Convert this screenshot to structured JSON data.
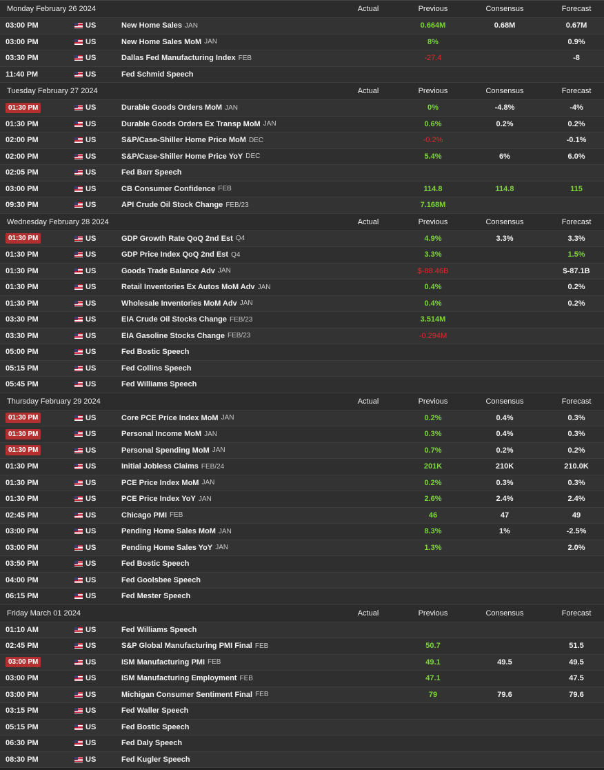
{
  "columns": {
    "actual": "Actual",
    "previous": "Previous",
    "consensus": "Consensus",
    "forecast": "Forecast"
  },
  "colors": {
    "positive": "#7dd63a",
    "negative": "#e02a2a",
    "highlight_time": "#b23030"
  },
  "days": [
    {
      "date": "Monday February 26 2024",
      "events": [
        {
          "time": "03:00 PM",
          "hl": false,
          "country": "US",
          "name": "New Home Sales",
          "ref": "JAN",
          "actual": "",
          "previous": "0.664M",
          "prev_sign": "pos",
          "consensus": "0.68M",
          "forecast": "0.67M"
        },
        {
          "time": "03:00 PM",
          "hl": false,
          "country": "US",
          "name": "New Home Sales MoM",
          "ref": "JAN",
          "actual": "",
          "previous": "8%",
          "prev_sign": "pos",
          "consensus": "",
          "forecast": "0.9%"
        },
        {
          "time": "03:30 PM",
          "hl": false,
          "country": "US",
          "name": "Dallas Fed Manufacturing Index",
          "ref": "FEB",
          "actual": "",
          "previous": "-27.4",
          "prev_sign": "neg",
          "consensus": "",
          "forecast": "-8"
        },
        {
          "time": "11:40 PM",
          "hl": false,
          "country": "US",
          "name": "Fed Schmid Speech",
          "ref": "",
          "actual": "",
          "previous": "",
          "prev_sign": "pos",
          "consensus": "",
          "forecast": ""
        }
      ]
    },
    {
      "date": "Tuesday February 27 2024",
      "events": [
        {
          "time": "01:30 PM",
          "hl": true,
          "country": "US",
          "name": "Durable Goods Orders MoM",
          "ref": "JAN",
          "actual": "",
          "previous": "0%",
          "prev_sign": "pos",
          "consensus": "-4.8%",
          "forecast": "-4%"
        },
        {
          "time": "01:30 PM",
          "hl": false,
          "country": "US",
          "name": "Durable Goods Orders Ex Transp MoM",
          "ref": "JAN",
          "actual": "",
          "previous": "0.6%",
          "prev_sign": "pos",
          "consensus": "0.2%",
          "forecast": "0.2%"
        },
        {
          "time": "02:00 PM",
          "hl": false,
          "country": "US",
          "name": "S&P/Case-Shiller Home Price MoM",
          "ref": "DEC",
          "actual": "",
          "previous": "-0.2%",
          "prev_sign": "neg",
          "consensus": "",
          "forecast": "-0.1%"
        },
        {
          "time": "02:00 PM",
          "hl": false,
          "country": "US",
          "name": "S&P/Case-Shiller Home Price YoY",
          "ref": "DEC",
          "actual": "",
          "previous": "5.4%",
          "prev_sign": "pos",
          "consensus": "6%",
          "forecast": "6.0%"
        },
        {
          "time": "02:05 PM",
          "hl": false,
          "country": "US",
          "name": "Fed Barr Speech",
          "ref": "",
          "actual": "",
          "previous": "",
          "prev_sign": "pos",
          "consensus": "",
          "forecast": ""
        },
        {
          "time": "03:00 PM",
          "hl": false,
          "country": "US",
          "name": "CB Consumer Confidence",
          "ref": "FEB",
          "actual": "",
          "previous": "114.8",
          "prev_sign": "pos",
          "consensus": "114.8",
          "cons_green": true,
          "forecast": "115",
          "fc_green": true
        },
        {
          "time": "09:30 PM",
          "hl": false,
          "country": "US",
          "name": "API Crude Oil Stock Change",
          "ref": "FEB/23",
          "actual": "",
          "previous": "7.168M",
          "prev_sign": "pos",
          "consensus": "",
          "forecast": ""
        }
      ]
    },
    {
      "date": "Wednesday February 28 2024",
      "events": [
        {
          "time": "01:30 PM",
          "hl": true,
          "country": "US",
          "name": "GDP Growth Rate QoQ 2nd Est",
          "ref": "Q4",
          "actual": "",
          "previous": "4.9%",
          "prev_sign": "pos",
          "consensus": "3.3%",
          "forecast": "3.3%"
        },
        {
          "time": "01:30 PM",
          "hl": false,
          "country": "US",
          "name": "GDP Price Index QoQ 2nd Est",
          "ref": "Q4",
          "actual": "",
          "previous": "3.3%",
          "prev_sign": "pos",
          "consensus": "",
          "forecast": "1.5%",
          "fc_green": true
        },
        {
          "time": "01:30 PM",
          "hl": false,
          "country": "US",
          "name": "Goods Trade Balance Adv",
          "ref": "JAN",
          "actual": "",
          "previous": "$-88.46B",
          "prev_sign": "neg",
          "consensus": "",
          "forecast": "$-87.1B"
        },
        {
          "time": "01:30 PM",
          "hl": false,
          "country": "US",
          "name": "Retail Inventories Ex Autos MoM Adv",
          "ref": "JAN",
          "actual": "",
          "previous": "0.4%",
          "prev_sign": "pos",
          "consensus": "",
          "forecast": "0.2%"
        },
        {
          "time": "01:30 PM",
          "hl": false,
          "country": "US",
          "name": "Wholesale Inventories MoM Adv",
          "ref": "JAN",
          "actual": "",
          "previous": "0.4%",
          "prev_sign": "pos",
          "consensus": "",
          "forecast": "0.2%"
        },
        {
          "time": "03:30 PM",
          "hl": false,
          "country": "US",
          "name": "EIA Crude Oil Stocks Change",
          "ref": "FEB/23",
          "actual": "",
          "previous": "3.514M",
          "prev_sign": "pos",
          "consensus": "",
          "forecast": ""
        },
        {
          "time": "03:30 PM",
          "hl": false,
          "country": "US",
          "name": "EIA Gasoline Stocks Change",
          "ref": "FEB/23",
          "actual": "",
          "previous": "-0.294M",
          "prev_sign": "neg",
          "consensus": "",
          "forecast": ""
        },
        {
          "time": "05:00 PM",
          "hl": false,
          "country": "US",
          "name": "Fed Bostic Speech",
          "ref": "",
          "actual": "",
          "previous": "",
          "prev_sign": "pos",
          "consensus": "",
          "forecast": ""
        },
        {
          "time": "05:15 PM",
          "hl": false,
          "country": "US",
          "name": "Fed Collins Speech",
          "ref": "",
          "actual": "",
          "previous": "",
          "prev_sign": "pos",
          "consensus": "",
          "forecast": ""
        },
        {
          "time": "05:45 PM",
          "hl": false,
          "country": "US",
          "name": "Fed Williams Speech",
          "ref": "",
          "actual": "",
          "previous": "",
          "prev_sign": "pos",
          "consensus": "",
          "forecast": ""
        }
      ]
    },
    {
      "date": "Thursday February 29 2024",
      "events": [
        {
          "time": "01:30 PM",
          "hl": true,
          "country": "US",
          "name": "Core PCE Price Index MoM",
          "ref": "JAN",
          "actual": "",
          "previous": "0.2%",
          "prev_sign": "pos",
          "consensus": "0.4%",
          "forecast": "0.3%"
        },
        {
          "time": "01:30 PM",
          "hl": true,
          "country": "US",
          "name": "Personal Income MoM",
          "ref": "JAN",
          "actual": "",
          "previous": "0.3%",
          "prev_sign": "pos",
          "consensus": "0.4%",
          "forecast": "0.3%"
        },
        {
          "time": "01:30 PM",
          "hl": true,
          "country": "US",
          "name": "Personal Spending MoM",
          "ref": "JAN",
          "actual": "",
          "previous": "0.7%",
          "prev_sign": "pos",
          "consensus": "0.2%",
          "forecast": "0.2%"
        },
        {
          "time": "01:30 PM",
          "hl": false,
          "country": "US",
          "name": "Initial Jobless Claims",
          "ref": "FEB/24",
          "actual": "",
          "previous": "201K",
          "prev_sign": "pos",
          "consensus": "210K",
          "forecast": "210.0K"
        },
        {
          "time": "01:30 PM",
          "hl": false,
          "country": "US",
          "name": "PCE Price Index MoM",
          "ref": "JAN",
          "actual": "",
          "previous": "0.2%",
          "prev_sign": "pos",
          "consensus": "0.3%",
          "forecast": "0.3%"
        },
        {
          "time": "01:30 PM",
          "hl": false,
          "country": "US",
          "name": "PCE Price Index YoY",
          "ref": "JAN",
          "actual": "",
          "previous": "2.6%",
          "prev_sign": "pos",
          "consensus": "2.4%",
          "forecast": "2.4%"
        },
        {
          "time": "02:45 PM",
          "hl": false,
          "country": "US",
          "name": "Chicago PMI",
          "ref": "FEB",
          "actual": "",
          "previous": "46",
          "prev_sign": "pos",
          "consensus": "47",
          "forecast": "49"
        },
        {
          "time": "03:00 PM",
          "hl": false,
          "country": "US",
          "name": "Pending Home Sales MoM",
          "ref": "JAN",
          "actual": "",
          "previous": "8.3%",
          "prev_sign": "pos",
          "consensus": "1%",
          "forecast": "-2.5%"
        },
        {
          "time": "03:00 PM",
          "hl": false,
          "country": "US",
          "name": "Pending Home Sales YoY",
          "ref": "JAN",
          "actual": "",
          "previous": "1.3%",
          "prev_sign": "pos",
          "consensus": "",
          "forecast": "2.0%"
        },
        {
          "time": "03:50 PM",
          "hl": false,
          "country": "US",
          "name": "Fed Bostic Speech",
          "ref": "",
          "actual": "",
          "previous": "",
          "prev_sign": "pos",
          "consensus": "",
          "forecast": ""
        },
        {
          "time": "04:00 PM",
          "hl": false,
          "country": "US",
          "name": "Fed Goolsbee Speech",
          "ref": "",
          "actual": "",
          "previous": "",
          "prev_sign": "pos",
          "consensus": "",
          "forecast": ""
        },
        {
          "time": "06:15 PM",
          "hl": false,
          "country": "US",
          "name": "Fed Mester Speech",
          "ref": "",
          "actual": "",
          "previous": "",
          "prev_sign": "pos",
          "consensus": "",
          "forecast": ""
        }
      ]
    },
    {
      "date": "Friday March 01 2024",
      "events": [
        {
          "time": "01:10 AM",
          "hl": false,
          "country": "US",
          "name": "Fed Williams Speech",
          "ref": "",
          "actual": "",
          "previous": "",
          "prev_sign": "pos",
          "consensus": "",
          "forecast": ""
        },
        {
          "time": "02:45 PM",
          "hl": false,
          "country": "US",
          "name": "S&P Global Manufacturing PMI Final",
          "ref": "FEB",
          "actual": "",
          "previous": "50.7",
          "prev_sign": "pos",
          "consensus": "",
          "forecast": "51.5"
        },
        {
          "time": "03:00 PM",
          "hl": true,
          "country": "US",
          "name": "ISM Manufacturing PMI",
          "ref": "FEB",
          "actual": "",
          "previous": "49.1",
          "prev_sign": "pos",
          "consensus": "49.5",
          "forecast": "49.5"
        },
        {
          "time": "03:00 PM",
          "hl": false,
          "country": "US",
          "name": "ISM Manufacturing Employment",
          "ref": "FEB",
          "actual": "",
          "previous": "47.1",
          "prev_sign": "pos",
          "consensus": "",
          "forecast": "47.5"
        },
        {
          "time": "03:00 PM",
          "hl": false,
          "country": "US",
          "name": "Michigan Consumer Sentiment Final",
          "ref": "FEB",
          "actual": "",
          "previous": "79",
          "prev_sign": "pos",
          "consensus": "79.6",
          "forecast": "79.6"
        },
        {
          "time": "03:15 PM",
          "hl": false,
          "country": "US",
          "name": "Fed Waller Speech",
          "ref": "",
          "actual": "",
          "previous": "",
          "prev_sign": "pos",
          "consensus": "",
          "forecast": ""
        },
        {
          "time": "05:15 PM",
          "hl": false,
          "country": "US",
          "name": "Fed Bostic Speech",
          "ref": "",
          "actual": "",
          "previous": "",
          "prev_sign": "pos",
          "consensus": "",
          "forecast": ""
        },
        {
          "time": "06:30 PM",
          "hl": false,
          "country": "US",
          "name": "Fed Daly Speech",
          "ref": "",
          "actual": "",
          "previous": "",
          "prev_sign": "pos",
          "consensus": "",
          "forecast": ""
        },
        {
          "time": "08:30 PM",
          "hl": false,
          "country": "US",
          "name": "Fed Kugler Speech",
          "ref": "",
          "actual": "",
          "previous": "",
          "prev_sign": "pos",
          "consensus": "",
          "forecast": ""
        }
      ]
    }
  ]
}
